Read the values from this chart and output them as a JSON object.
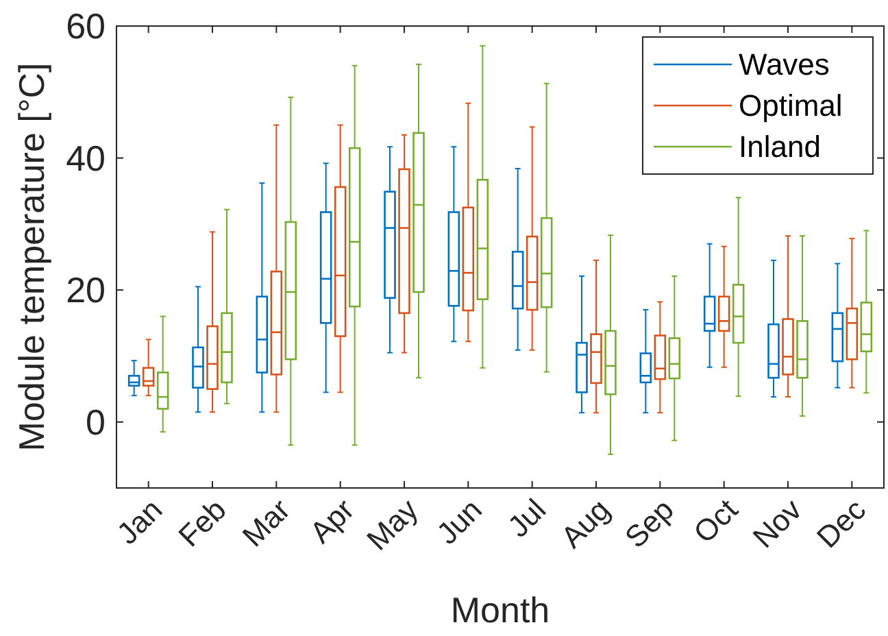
{
  "chart_data": {
    "type": "box",
    "xlabel": "Month",
    "ylabel": "Module temperature [°C]",
    "categories": [
      "Jan",
      "Feb",
      "Mar",
      "Apr",
      "May",
      "Jun",
      "Jul",
      "Aug",
      "Sep",
      "Oct",
      "Nov",
      "Dec"
    ],
    "ylim": [
      -10,
      60
    ],
    "yticks": [
      0,
      20,
      40,
      60
    ],
    "legend": "top right",
    "grid": false,
    "series": [
      {
        "name": "Waves",
        "color": "#0072bd",
        "boxes": [
          {
            "low": 4,
            "q1": 5.5,
            "median": 6,
            "q3": 7,
            "high": 9.3
          },
          {
            "low": 1.5,
            "q1": 5.2,
            "median": 8.4,
            "q3": 11.3,
            "high": 20.5
          },
          {
            "low": 1.5,
            "q1": 7.5,
            "median": 12.5,
            "q3": 19,
            "high": 36.2
          },
          {
            "low": 4.5,
            "q1": 15,
            "median": 21.7,
            "q3": 31.8,
            "high": 39.2
          },
          {
            "low": 10.5,
            "q1": 18.8,
            "median": 29.4,
            "q3": 34.9,
            "high": 41.7
          },
          {
            "low": 12.2,
            "q1": 17.6,
            "median": 22.9,
            "q3": 31.8,
            "high": 41.7
          },
          {
            "low": 10.9,
            "q1": 17.2,
            "median": 20.6,
            "q3": 25.8,
            "high": 38.4
          },
          {
            "low": 1.4,
            "q1": 4.5,
            "median": 10.2,
            "q3": 12,
            "high": 22.1
          },
          {
            "low": 1.4,
            "q1": 6,
            "median": 7,
            "q3": 10.4,
            "high": 17
          },
          {
            "low": 8.3,
            "q1": 13.8,
            "median": 14.9,
            "q3": 19,
            "high": 27
          },
          {
            "low": 3.8,
            "q1": 6.7,
            "median": 8.8,
            "q3": 14.8,
            "high": 24.5
          },
          {
            "low": 5.2,
            "q1": 9.2,
            "median": 14.1,
            "q3": 16.5,
            "high": 24
          }
        ]
      },
      {
        "name": "Optimal",
        "color": "#d95319",
        "boxes": [
          {
            "low": 4,
            "q1": 5.5,
            "median": 6.2,
            "q3": 8.2,
            "high": 12.5
          },
          {
            "low": 1.5,
            "q1": 5,
            "median": 8.8,
            "q3": 14.5,
            "high": 28.8
          },
          {
            "low": 1.5,
            "q1": 7.2,
            "median": 13.6,
            "q3": 22.8,
            "high": 45
          },
          {
            "low": 4.5,
            "q1": 13,
            "median": 22.2,
            "q3": 35.6,
            "high": 45
          },
          {
            "low": 10.5,
            "q1": 16.5,
            "median": 29.4,
            "q3": 38.3,
            "high": 43.5
          },
          {
            "low": 12.2,
            "q1": 16.9,
            "median": 22.6,
            "q3": 32.5,
            "high": 48.3
          },
          {
            "low": 10.9,
            "q1": 17,
            "median": 21.2,
            "q3": 28.1,
            "high": 44.7
          },
          {
            "low": 1.4,
            "q1": 5.9,
            "median": 10.6,
            "q3": 13.3,
            "high": 24.5
          },
          {
            "low": 1.4,
            "q1": 6.5,
            "median": 8.1,
            "q3": 13.1,
            "high": 18.2
          },
          {
            "low": 8.3,
            "q1": 13.8,
            "median": 15.3,
            "q3": 19,
            "high": 26.6
          },
          {
            "low": 3.8,
            "q1": 7.2,
            "median": 9.9,
            "q3": 15.6,
            "high": 28.2
          },
          {
            "low": 5.2,
            "q1": 9.5,
            "median": 15,
            "q3": 17.2,
            "high": 27.8
          }
        ]
      },
      {
        "name": "Inland",
        "color": "#77ac30",
        "boxes": [
          {
            "low": -1.5,
            "q1": 2,
            "median": 3.8,
            "q3": 7.5,
            "high": 16
          },
          {
            "low": 2.8,
            "q1": 6,
            "median": 10.6,
            "q3": 16.5,
            "high": 32.2
          },
          {
            "low": -3.5,
            "q1": 9.5,
            "median": 19.7,
            "q3": 30.3,
            "high": 49.2
          },
          {
            "low": -3.5,
            "q1": 17.5,
            "median": 27.3,
            "q3": 41.5,
            "high": 54
          },
          {
            "low": 6.7,
            "q1": 19.7,
            "median": 32.9,
            "q3": 43.8,
            "high": 54.2
          },
          {
            "low": 8.2,
            "q1": 18.6,
            "median": 26.3,
            "q3": 36.7,
            "high": 57
          },
          {
            "low": 7.6,
            "q1": 17.4,
            "median": 22.5,
            "q3": 30.9,
            "high": 51.3
          },
          {
            "low": -4.9,
            "q1": 4.2,
            "median": 8.5,
            "q3": 13.8,
            "high": 28.3
          },
          {
            "low": -2.8,
            "q1": 6.6,
            "median": 8.8,
            "q3": 12.7,
            "high": 22.1
          },
          {
            "low": 3.9,
            "q1": 12,
            "median": 16,
            "q3": 20.8,
            "high": 34
          },
          {
            "low": 0.9,
            "q1": 6.7,
            "median": 9.5,
            "q3": 15.3,
            "high": 28.2
          },
          {
            "low": 4.4,
            "q1": 10.7,
            "median": 13.3,
            "q3": 18.1,
            "high": 29
          }
        ]
      }
    ]
  }
}
